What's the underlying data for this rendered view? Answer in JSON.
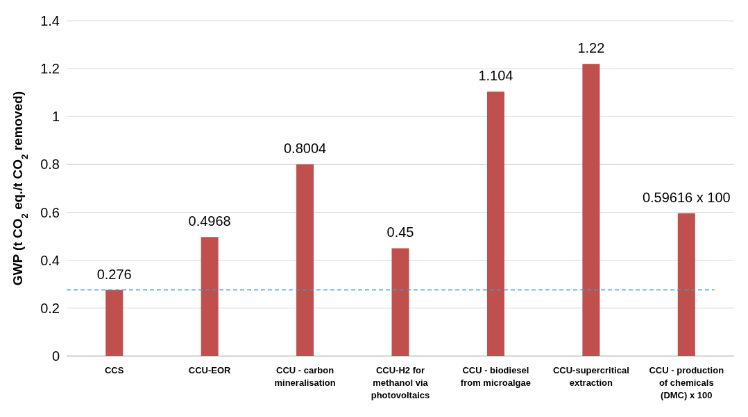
{
  "chart_data": {
    "type": "bar",
    "ylabel": "GWP (t CO$_{2}$ eq./t CO$_{2}$ removed)",
    "categories": [
      "CCS",
      "CCU-EOR",
      "CCU - carbon mineralisation",
      "CCU-H2 for methanol via photovoltaics",
      "CCU - biodiesel from microalgae",
      "CCU-supercritical extraction",
      "CCU - production of chemicals (DMC) x 100"
    ],
    "values": [
      0.276,
      0.4968,
      0.8004,
      0.45,
      1.104,
      1.22,
      0.59616
    ],
    "value_labels": [
      "0.276",
      "0.4968",
      "0.8004",
      "0.45",
      "1.104",
      "1.22",
      "0.59616 x 100"
    ],
    "color": "#c0504d",
    "ylim": [
      0,
      1.4
    ],
    "yticks": [
      0,
      0.2,
      0.4,
      0.6,
      0.8,
      1,
      1.2,
      1.4
    ],
    "grid": "y",
    "ref_lines": [
      {
        "axis": "y",
        "value": 0.276,
        "color": "#1fa8e0",
        "line_style": "dashed"
      }
    ]
  }
}
